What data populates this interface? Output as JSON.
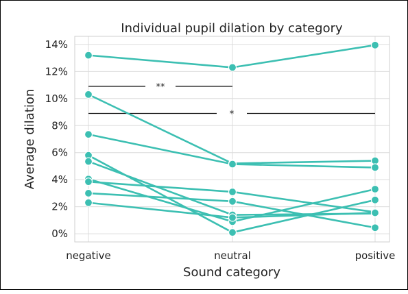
{
  "chart_data": {
    "type": "line",
    "title": "Individual pupil dilation by category",
    "xlabel": "Sound category",
    "ylabel": "Average dilation",
    "categories": [
      "negative",
      "neutral",
      "positive"
    ],
    "ylim": [
      -0.6,
      14.6
    ],
    "yticks": [
      0,
      2,
      4,
      6,
      8,
      10,
      12,
      14
    ],
    "ytick_labels": [
      "0%",
      "2%",
      "4%",
      "6%",
      "8%",
      "10%",
      "12%",
      "14%"
    ],
    "grid": true,
    "color": "#3cbfb2",
    "series": [
      {
        "values": [
          13.2,
          12.3,
          13.95
        ]
      },
      {
        "values": [
          10.3,
          5.2,
          5.4
        ]
      },
      {
        "values": [
          7.35,
          5.15,
          4.9
        ]
      },
      {
        "values": [
          5.8,
          0.1,
          2.5
        ]
      },
      {
        "values": [
          5.35,
          1.4,
          1.5
        ]
      },
      {
        "values": [
          4.05,
          0.9,
          3.3
        ]
      },
      {
        "values": [
          3.85,
          3.1,
          1.6
        ]
      },
      {
        "values": [
          3.0,
          2.4,
          0.45
        ]
      },
      {
        "values": [
          2.3,
          1.2,
          1.55
        ]
      }
    ],
    "annotations": [
      {
        "label": "**",
        "from": "negative",
        "to": "neutral",
        "y": 10.9
      },
      {
        "label": "*",
        "from": "negative",
        "to": "positive",
        "y": 8.9
      }
    ]
  }
}
